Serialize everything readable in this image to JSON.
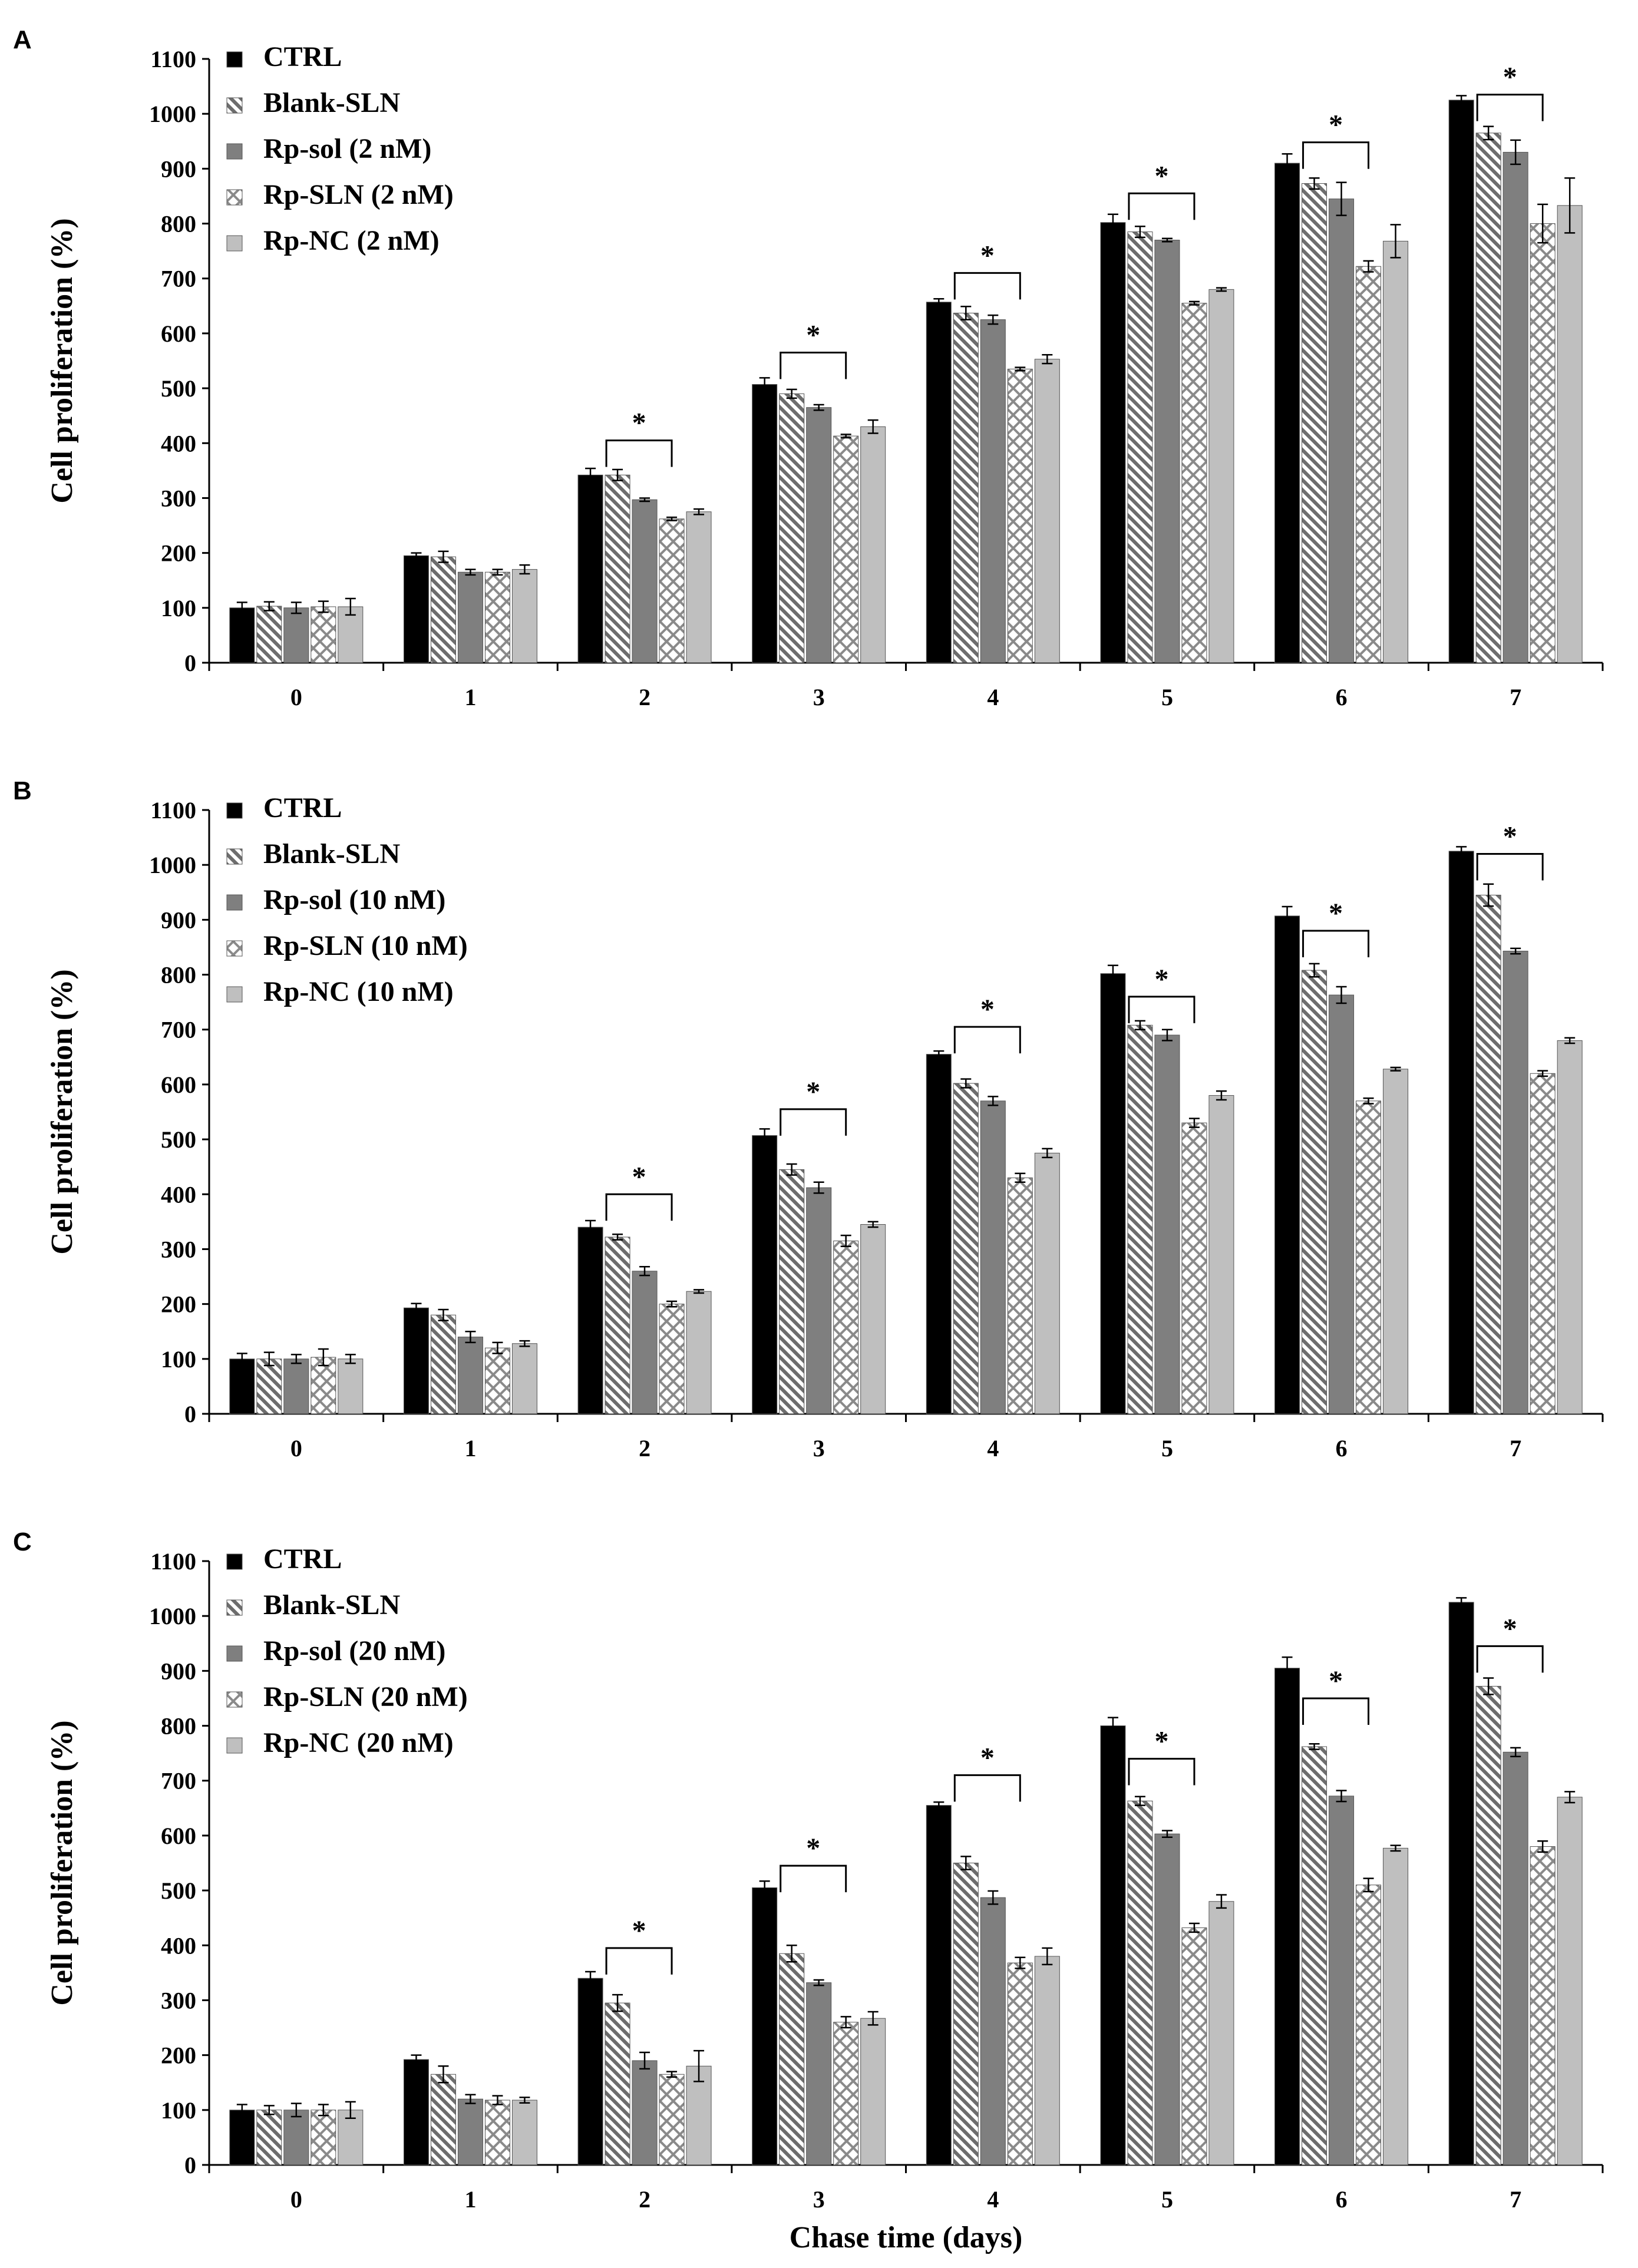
{
  "colors": {
    "ctrl": "#000000",
    "blank_sln": "#c8c8c8",
    "rp_sol": "#7f7f7f",
    "rp_sln": "#ffffff",
    "rp_nc": "#bfbfbf",
    "axis": "#000000",
    "errorbar": "#000000"
  },
  "chart_data": [
    {
      "panel": "A",
      "type": "bar",
      "title": "",
      "xlabel": "",
      "ylabel": "Cell proliferation (%)",
      "ylim": [
        0,
        1100
      ],
      "yticks": [
        0,
        100,
        200,
        300,
        400,
        500,
        600,
        700,
        800,
        900,
        1000,
        1100
      ],
      "categories": [
        "0",
        "1",
        "2",
        "3",
        "4",
        "5",
        "6",
        "7"
      ],
      "legend_position": "top-left",
      "series": [
        {
          "name": "CTRL",
          "pattern": "solid-black",
          "values": [
            100,
            195,
            342,
            507,
            657,
            802,
            910,
            1025
          ],
          "errors": [
            10,
            5,
            12,
            12,
            6,
            15,
            17,
            8
          ]
        },
        {
          "name": "Blank-SLN",
          "pattern": "diagonal",
          "values": [
            103,
            193,
            342,
            490,
            637,
            785,
            873,
            965
          ],
          "errors": [
            8,
            10,
            10,
            8,
            12,
            10,
            10,
            12
          ]
        },
        {
          "name": "Rp-sol (2 nM)",
          "pattern": "solid-gray",
          "values": [
            100,
            165,
            297,
            465,
            625,
            770,
            845,
            930
          ],
          "errors": [
            10,
            5,
            3,
            5,
            8,
            3,
            30,
            22
          ]
        },
        {
          "name": "Rp-SLN (2 nM)",
          "pattern": "crosshatch",
          "values": [
            102,
            165,
            262,
            413,
            535,
            655,
            722,
            800
          ],
          "errors": [
            10,
            5,
            3,
            3,
            3,
            3,
            10,
            35
          ]
        },
        {
          "name": "Rp-NC (2 nM)",
          "pattern": "solid-lightgray",
          "values": [
            102,
            170,
            275,
            430,
            553,
            680,
            768,
            833
          ],
          "errors": [
            15,
            8,
            5,
            12,
            8,
            3,
            30,
            50
          ]
        }
      ],
      "significance": [
        {
          "category": "2",
          "from": "CTRL",
          "to": "Rp-SLN (2 nM)",
          "label": "*",
          "bracket_level": 405
        },
        {
          "category": "3",
          "from": "CTRL",
          "to": "Rp-SLN (2 nM)",
          "label": "*",
          "bracket_level": 565
        },
        {
          "category": "4",
          "from": "CTRL",
          "to": "Rp-SLN (2 nM)",
          "label": "*",
          "bracket_level": 710
        },
        {
          "category": "5",
          "from": "CTRL",
          "to": "Rp-SLN (2 nM)",
          "label": "*",
          "bracket_level": 855
        },
        {
          "category": "6",
          "from": "CTRL",
          "to": "Rp-SLN (2 nM)",
          "label": "*",
          "bracket_level": 948
        },
        {
          "category": "7",
          "from": "CTRL",
          "to": "Rp-SLN (2 nM)",
          "label": "*",
          "bracket_level": 1035
        }
      ]
    },
    {
      "panel": "B",
      "type": "bar",
      "title": "",
      "xlabel": "",
      "ylabel": "Cell proliferation (%)",
      "ylim": [
        0,
        1100
      ],
      "yticks": [
        0,
        100,
        200,
        300,
        400,
        500,
        600,
        700,
        800,
        900,
        1000,
        1100
      ],
      "categories": [
        "0",
        "1",
        "2",
        "3",
        "4",
        "5",
        "6",
        "7"
      ],
      "legend_position": "top-left",
      "series": [
        {
          "name": "CTRL",
          "pattern": "solid-black",
          "values": [
            100,
            193,
            340,
            507,
            655,
            802,
            907,
            1025
          ],
          "errors": [
            10,
            8,
            12,
            12,
            6,
            15,
            17,
            8
          ]
        },
        {
          "name": "Blank-SLN",
          "pattern": "diagonal",
          "values": [
            100,
            180,
            322,
            445,
            602,
            708,
            808,
            945
          ],
          "errors": [
            12,
            10,
            5,
            10,
            8,
            8,
            12,
            20
          ]
        },
        {
          "name": "Rp-sol (10 nM)",
          "pattern": "solid-gray",
          "values": [
            100,
            140,
            260,
            412,
            570,
            690,
            763,
            843
          ],
          "errors": [
            8,
            10,
            8,
            10,
            8,
            10,
            15,
            5
          ]
        },
        {
          "name": "Rp-SLN (10 nM)",
          "pattern": "crosshatch",
          "values": [
            103,
            120,
            200,
            315,
            430,
            530,
            570,
            620
          ],
          "errors": [
            15,
            10,
            5,
            10,
            8,
            8,
            5,
            5
          ]
        },
        {
          "name": "Rp-NC (10 nM)",
          "pattern": "solid-lightgray",
          "values": [
            100,
            128,
            223,
            345,
            475,
            580,
            628,
            680
          ],
          "errors": [
            8,
            5,
            3,
            5,
            8,
            8,
            3,
            5
          ]
        }
      ],
      "significance": [
        {
          "category": "2",
          "from": "CTRL",
          "to": "Rp-SLN (10 nM)",
          "label": "*",
          "bracket_level": 400
        },
        {
          "category": "3",
          "from": "CTRL",
          "to": "Rp-SLN (10 nM)",
          "label": "*",
          "bracket_level": 555
        },
        {
          "category": "4",
          "from": "CTRL",
          "to": "Rp-SLN (10 nM)",
          "label": "*",
          "bracket_level": 705
        },
        {
          "category": "5",
          "from": "CTRL",
          "to": "Rp-SLN (10 nM)",
          "label": "*",
          "bracket_level": 760
        },
        {
          "category": "6",
          "from": "CTRL",
          "to": "Rp-SLN (10 nM)",
          "label": "*",
          "bracket_level": 880
        },
        {
          "category": "7",
          "from": "CTRL",
          "to": "Rp-SLN (10 nM)",
          "label": "*",
          "bracket_level": 1020
        }
      ]
    },
    {
      "panel": "C",
      "type": "bar",
      "title": "",
      "xlabel": "Chase time (days)",
      "ylabel": "Cell proliferation (%)",
      "ylim": [
        0,
        1100
      ],
      "yticks": [
        0,
        100,
        200,
        300,
        400,
        500,
        600,
        700,
        800,
        900,
        1000,
        1100
      ],
      "categories": [
        "0",
        "1",
        "2",
        "3",
        "4",
        "5",
        "6",
        "7"
      ],
      "legend_position": "top-left",
      "series": [
        {
          "name": "CTRL",
          "pattern": "solid-black",
          "values": [
            100,
            192,
            340,
            505,
            655,
            800,
            905,
            1025
          ],
          "errors": [
            10,
            8,
            12,
            12,
            6,
            15,
            20,
            8
          ]
        },
        {
          "name": "Blank-SLN",
          "pattern": "diagonal",
          "values": [
            100,
            165,
            295,
            385,
            550,
            663,
            762,
            872
          ],
          "errors": [
            8,
            15,
            15,
            15,
            12,
            8,
            5,
            15
          ]
        },
        {
          "name": "Rp-sol (20 nM)",
          "pattern": "solid-gray",
          "values": [
            100,
            120,
            190,
            332,
            487,
            603,
            672,
            752
          ],
          "errors": [
            12,
            8,
            15,
            5,
            12,
            6,
            10,
            8
          ]
        },
        {
          "name": "Rp-SLN (20 nM)",
          "pattern": "crosshatch",
          "values": [
            100,
            118,
            165,
            260,
            368,
            432,
            510,
            580
          ],
          "errors": [
            10,
            8,
            5,
            10,
            10,
            8,
            12,
            10
          ]
        },
        {
          "name": "Rp-NC (20 nM)",
          "pattern": "solid-lightgray",
          "values": [
            100,
            118,
            180,
            267,
            380,
            480,
            577,
            670
          ],
          "errors": [
            15,
            5,
            28,
            12,
            15,
            12,
            5,
            10
          ]
        }
      ],
      "significance": [
        {
          "category": "2",
          "from": "CTRL",
          "to": "Rp-SLN (20 nM)",
          "label": "*",
          "bracket_level": 395
        },
        {
          "category": "3",
          "from": "CTRL",
          "to": "Rp-SLN (20 nM)",
          "label": "*",
          "bracket_level": 545
        },
        {
          "category": "4",
          "from": "CTRL",
          "to": "Rp-SLN (20 nM)",
          "label": "*",
          "bracket_level": 710
        },
        {
          "category": "5",
          "from": "CTRL",
          "to": "Rp-SLN (20 nM)",
          "label": "*",
          "bracket_level": 740
        },
        {
          "category": "6",
          "from": "CTRL",
          "to": "Rp-SLN (20 nM)",
          "label": "*",
          "bracket_level": 850
        },
        {
          "category": "7",
          "from": "CTRL",
          "to": "Rp-SLN (20 nM)",
          "label": "*",
          "bracket_level": 945
        }
      ]
    }
  ]
}
